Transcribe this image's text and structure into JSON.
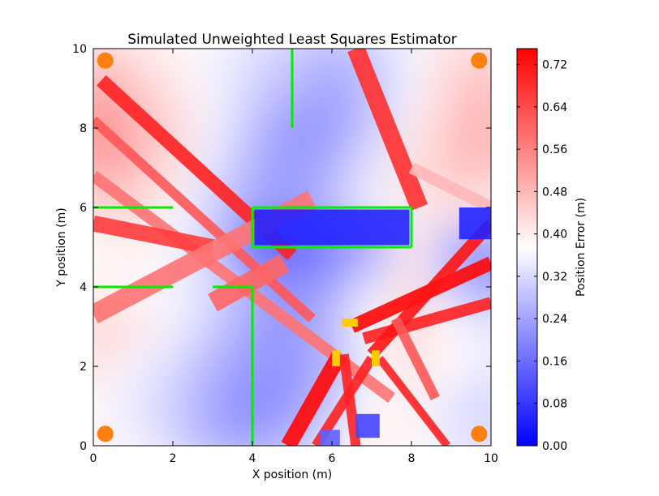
{
  "chart_data": {
    "type": "heatmap",
    "title": "Simulated Unweighted Least Squares Estimator",
    "xlabel": "X position (m)",
    "ylabel": "Y position (m)",
    "xlim": [
      0,
      10
    ],
    "ylim": [
      0,
      10
    ],
    "x_ticks": [
      "0",
      "2",
      "4",
      "6",
      "8",
      "10"
    ],
    "y_ticks": [
      "0",
      "2",
      "4",
      "6",
      "8",
      "10"
    ],
    "colorbar": {
      "label": "Position Error (m)",
      "range": [
        0.0,
        0.75
      ],
      "colormap": "bwr",
      "ticks": [
        "0.00",
        "0.08",
        "0.16",
        "0.24",
        "0.32",
        "0.40",
        "0.48",
        "0.56",
        "0.64",
        "0.72"
      ]
    },
    "anchors": [
      [
        0.3,
        9.7
      ],
      [
        9.7,
        9.7
      ],
      [
        0.3,
        0.3
      ],
      [
        9.7,
        0.3
      ]
    ],
    "anchor_color": "#ff8010",
    "walls": [
      [
        [
          5,
          10
        ],
        [
          5,
          8
        ]
      ],
      [
        [
          0,
          6
        ],
        [
          2,
          6
        ]
      ],
      [
        [
          0,
          4
        ],
        [
          2,
          4
        ]
      ],
      [
        [
          3,
          4
        ],
        [
          4,
          4
        ]
      ],
      [
        [
          4,
          4
        ],
        [
          4,
          0
        ]
      ],
      [
        [
          4,
          6
        ],
        [
          8,
          6
        ]
      ],
      [
        [
          8,
          6
        ],
        [
          8,
          5
        ]
      ],
      [
        [
          8,
          5
        ],
        [
          4,
          5
        ]
      ],
      [
        [
          4,
          5
        ],
        [
          4,
          6
        ]
      ]
    ],
    "wall_color": "#00ee00",
    "obstacles": [
      {
        "x": [
          6.25,
          6.65
        ],
        "y": [
          3.0,
          3.2
        ]
      },
      {
        "x": [
          6.0,
          6.2
        ],
        "y": [
          2.0,
          2.4
        ]
      },
      {
        "x": [
          7.0,
          7.2
        ],
        "y": [
          2.0,
          2.4
        ]
      }
    ],
    "obstacle_color": "#ffcc00",
    "background_field": [
      [
        0.44,
        0.42,
        0.39,
        0.36,
        0.33,
        0.3,
        0.27,
        0.3,
        0.36,
        0.42,
        0.44
      ],
      [
        0.52,
        0.46,
        0.41,
        0.36,
        0.31,
        0.27,
        0.24,
        0.28,
        0.36,
        0.44,
        0.48
      ],
      [
        0.56,
        0.5,
        0.44,
        0.36,
        0.28,
        0.22,
        0.22,
        0.3,
        0.4,
        0.46,
        0.5
      ],
      [
        0.52,
        0.48,
        0.42,
        0.34,
        0.26,
        0.22,
        0.26,
        0.34,
        0.42,
        0.46,
        0.48
      ],
      [
        0.44,
        0.44,
        0.38,
        0.3,
        0.24,
        0.22,
        0.28,
        0.36,
        0.4,
        0.42,
        0.4
      ],
      [
        0.38,
        0.4,
        0.36,
        0.3,
        0.12,
        0.14,
        0.18,
        0.22,
        0.4,
        0.26,
        0.18
      ],
      [
        0.4,
        0.38,
        0.36,
        0.32,
        0.26,
        0.2,
        0.24,
        0.34,
        0.42,
        0.3,
        0.2
      ],
      [
        0.44,
        0.42,
        0.36,
        0.3,
        0.24,
        0.22,
        0.28,
        0.38,
        0.44,
        0.38,
        0.34
      ],
      [
        0.42,
        0.36,
        0.32,
        0.26,
        0.22,
        0.22,
        0.26,
        0.36,
        0.42,
        0.38,
        0.34
      ],
      [
        0.38,
        0.34,
        0.3,
        0.24,
        0.2,
        0.22,
        0.3,
        0.38,
        0.4,
        0.34,
        0.3
      ],
      [
        0.4,
        0.36,
        0.32,
        0.26,
        0.24,
        0.28,
        0.34,
        0.4,
        0.38,
        0.34,
        0.32
      ]
    ],
    "high_error_bands": [
      {
        "from": [
          0.2,
          9.2
        ],
        "to": [
          5.0,
          4.8
        ],
        "width": 0.35,
        "value": 0.7
      },
      {
        "from": [
          0.0,
          8.2
        ],
        "to": [
          5.5,
          3.2
        ],
        "width": 0.25,
        "value": 0.62
      },
      {
        "from": [
          0.0,
          6.8
        ],
        "to": [
          7.5,
          1.2
        ],
        "width": 0.3,
        "value": 0.58
      },
      {
        "from": [
          0.0,
          5.6
        ],
        "to": [
          3.0,
          5.0
        ],
        "width": 0.4,
        "value": 0.66
      },
      {
        "from": [
          0.0,
          3.3
        ],
        "to": [
          5.5,
          6.2
        ],
        "width": 0.5,
        "value": 0.58
      },
      {
        "from": [
          3.0,
          3.6
        ],
        "to": [
          4.8,
          4.6
        ],
        "width": 0.5,
        "value": 0.6
      },
      {
        "from": [
          6.6,
          10.0
        ],
        "to": [
          8.2,
          6.0
        ],
        "width": 0.45,
        "value": 0.68
      },
      {
        "from": [
          6.5,
          3.0
        ],
        "to": [
          10.0,
          4.6
        ],
        "width": 0.35,
        "value": 0.74
      },
      {
        "from": [
          6.8,
          2.7
        ],
        "to": [
          10.0,
          3.6
        ],
        "width": 0.3,
        "value": 0.7
      },
      {
        "from": [
          7.0,
          2.3
        ],
        "to": [
          10.0,
          5.6
        ],
        "width": 0.3,
        "value": 0.72
      },
      {
        "from": [
          6.2,
          2.3
        ],
        "to": [
          4.9,
          0.0
        ],
        "width": 0.4,
        "value": 0.74
      },
      {
        "from": [
          6.3,
          2.3
        ],
        "to": [
          6.6,
          0.0
        ],
        "width": 0.25,
        "value": 0.7
      },
      {
        "from": [
          7.0,
          2.2
        ],
        "to": [
          5.6,
          0.0
        ],
        "width": 0.25,
        "value": 0.7
      },
      {
        "from": [
          7.2,
          2.2
        ],
        "to": [
          8.9,
          0.0
        ],
        "width": 0.2,
        "value": 0.7
      },
      {
        "from": [
          7.6,
          3.2
        ],
        "to": [
          8.6,
          1.2
        ],
        "width": 0.25,
        "value": 0.62
      },
      {
        "from": [
          8.0,
          7.0
        ],
        "to": [
          10.0,
          6.0
        ],
        "width": 0.3,
        "value": 0.48
      }
    ],
    "low_error_regions": [
      {
        "x": [
          4.05,
          7.95
        ],
        "y": [
          5.05,
          5.95
        ],
        "value": 0.05
      },
      {
        "x": [
          9.2,
          10.0
        ],
        "y": [
          5.2,
          6.0
        ],
        "value": 0.05
      },
      {
        "x": [
          6.6,
          7.2
        ],
        "y": [
          0.2,
          0.8
        ],
        "value": 0.1
      },
      {
        "x": [
          5.7,
          6.2
        ],
        "y": [
          0.0,
          0.4
        ],
        "value": 0.14
      }
    ]
  }
}
